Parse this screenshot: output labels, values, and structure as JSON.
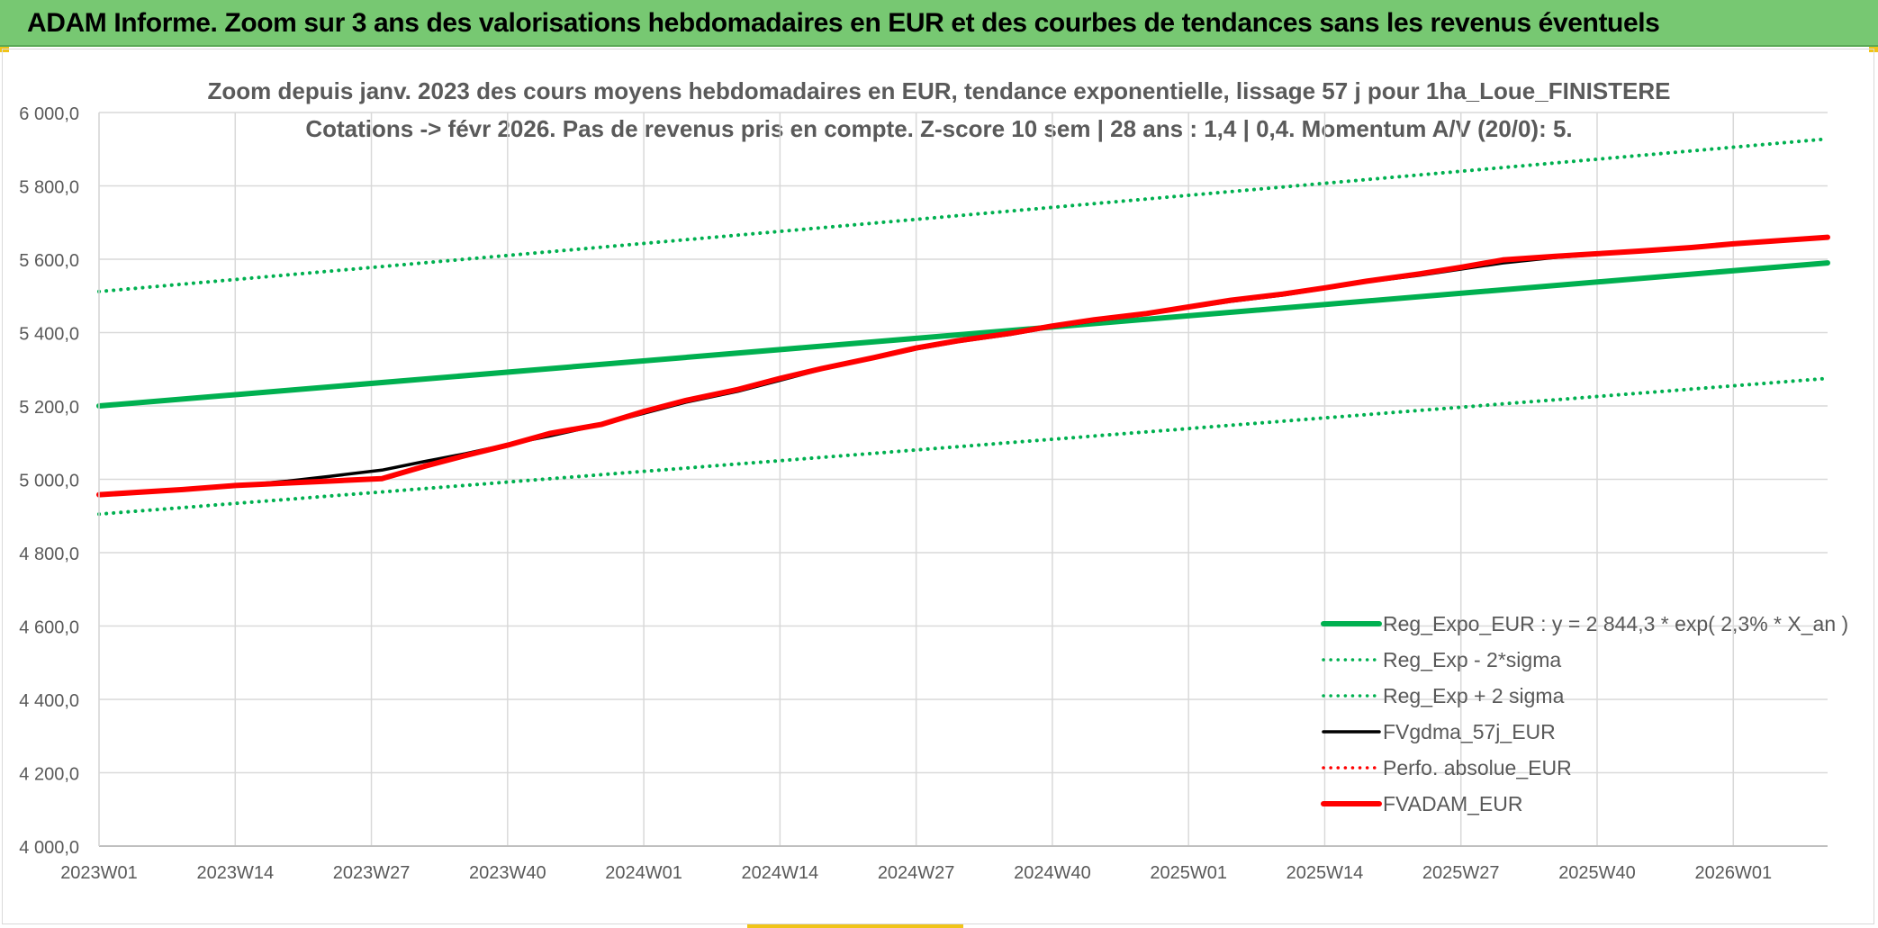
{
  "banner": {
    "title": "ADAM Informe. Zoom sur 3 ans des valorisations hebdomadaires en EUR et des courbes de tendances sans les revenus éventuels"
  },
  "colors": {
    "banner_bg": "#77c872",
    "reg_expo": "#00b050",
    "black_line": "#000000",
    "red_line": "#ff0000",
    "grid": "#d9d9d9",
    "axis_text": "#595959"
  },
  "chart_data": {
    "type": "line",
    "title_lines": [
      "Zoom depuis janv. 2023 des cours moyens hebdomadaires en EUR, tendance exponentielle, lissage 57 j pour 1ha_Loue_FINISTERE",
      "Cotations -> févr 2026. Pas de revenus pris en compte. Z-score 10 sem | 28 ans : 1,4 | 0,4. Momentum A/V (20/0): 5."
    ],
    "x_ticks": [
      "2023W01",
      "2023W14",
      "2023W27",
      "2023W40",
      "2024W01",
      "2024W14",
      "2024W27",
      "2024W40",
      "2025W01",
      "2025W14",
      "2025W27",
      "2025W40",
      "2026W01"
    ],
    "y_ticks": [
      "6 000,0",
      "5 800,0",
      "5 600,0",
      "5 400,0",
      "5 200,0",
      "5 000,0",
      "4 800,0",
      "4 600,0",
      "4 400,0",
      "4 200,0",
      "4 000,0"
    ],
    "ylim": [
      4000,
      6000
    ],
    "week_index_range": [
      0,
      165
    ],
    "grid": true,
    "legend_position": "bottom-right",
    "series": [
      {
        "name": "Reg_Expo_EUR : y = 2 844,3 * exp( 2,3% *  X_an )",
        "style": "solid-thick",
        "color": "#00b050",
        "x": [
          0,
          165
        ],
        "values": [
          5200,
          5590
        ]
      },
      {
        "name": "Reg_Exp - 2*sigma",
        "style": "dotted",
        "color": "#00b050",
        "x": [
          0,
          165
        ],
        "values": [
          4905,
          5275
        ]
      },
      {
        "name": "Reg_Exp + 2 sigma",
        "style": "dotted",
        "color": "#00b050",
        "x": [
          0,
          165
        ],
        "values": [
          5512,
          5928
        ]
      },
      {
        "name": "FVgdma_57j_EUR",
        "style": "solid",
        "color": "#000000",
        "x": [
          0,
          8,
          13,
          18,
          22,
          27,
          31,
          35,
          39,
          43,
          48,
          52,
          56,
          61,
          65,
          69,
          74,
          78,
          82,
          87,
          91,
          95,
          100,
          104,
          108,
          113,
          117,
          121,
          126,
          130,
          134,
          139,
          143,
          147,
          152,
          156,
          160,
          165
        ],
        "values": [
          4958,
          4970,
          4982,
          4995,
          5008,
          5025,
          5048,
          5070,
          5095,
          5118,
          5150,
          5180,
          5210,
          5240,
          5270,
          5300,
          5330,
          5355,
          5375,
          5395,
          5415,
          5432,
          5450,
          5468,
          5485,
          5502,
          5520,
          5538,
          5556,
          5573,
          5590,
          5605,
          5613,
          5620,
          5630,
          5640,
          5648,
          5658
        ]
      },
      {
        "name": "Perfo. absolue_EUR",
        "style": "dotted",
        "color": "#ff0000",
        "x": [],
        "values": []
      },
      {
        "name": "FVADAM_EUR",
        "style": "solid-thick",
        "color": "#ff0000",
        "x": [
          0,
          8,
          13,
          18,
          22,
          27,
          31,
          35,
          39,
          43,
          48,
          52,
          56,
          61,
          65,
          69,
          74,
          78,
          82,
          87,
          91,
          95,
          100,
          104,
          108,
          113,
          117,
          121,
          126,
          130,
          134,
          139,
          143,
          147,
          152,
          156,
          160,
          165
        ],
        "values": [
          4958,
          4972,
          4983,
          4990,
          4995,
          5002,
          5035,
          5065,
          5093,
          5125,
          5150,
          5185,
          5215,
          5245,
          5275,
          5302,
          5332,
          5358,
          5378,
          5398,
          5418,
          5435,
          5452,
          5470,
          5488,
          5505,
          5522,
          5540,
          5560,
          5578,
          5598,
          5608,
          5615,
          5622,
          5632,
          5642,
          5650,
          5660
        ]
      }
    ]
  }
}
